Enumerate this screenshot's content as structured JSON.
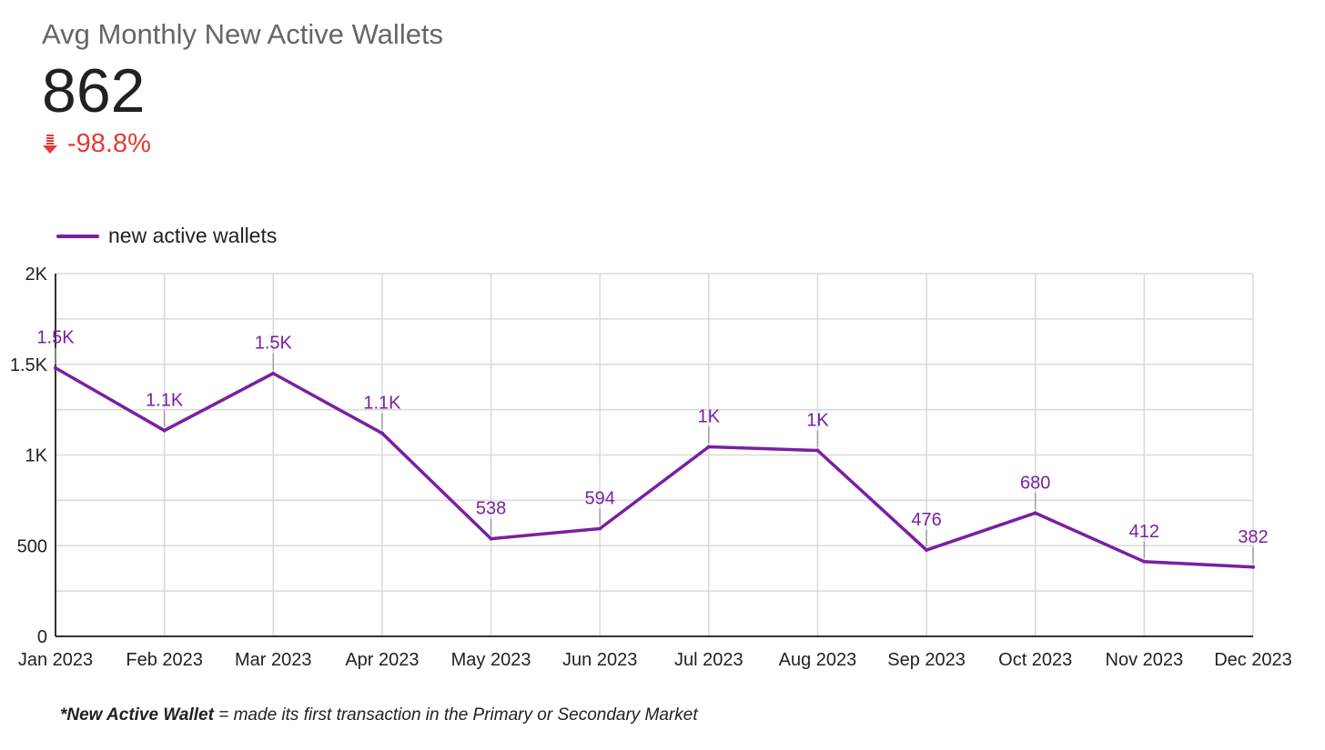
{
  "kpi": {
    "title": "Avg Monthly New Active Wallets",
    "value": "862",
    "delta": "-98.8%",
    "delta_direction": "down",
    "delta_icon": "arrow-down-icon",
    "delta_color": "#e53935"
  },
  "colors": {
    "series": "#7b1fa2",
    "grid": "#d9d9d9",
    "axis": "#333333"
  },
  "footnote": {
    "prefix": "*New Active Wallet",
    "rest": " = made its first transaction in the Primary or Secondary Market"
  },
  "chart_data": {
    "type": "line",
    "title": "",
    "xlabel": "",
    "ylabel": "",
    "ylim": [
      0,
      2000
    ],
    "y_ticks": [
      {
        "value": 0,
        "label": "0"
      },
      {
        "value": 500,
        "label": "500"
      },
      {
        "value": 1000,
        "label": "1K"
      },
      {
        "value": 1500,
        "label": "1.5K"
      },
      {
        "value": 2000,
        "label": "2K"
      }
    ],
    "grid": true,
    "legend_position": "top-left",
    "categories": [
      "Jan 2023",
      "Feb 2023",
      "Mar 2023",
      "Apr 2023",
      "May 2023",
      "Jun 2023",
      "Jul 2023",
      "Aug 2023",
      "Sep 2023",
      "Oct 2023",
      "Nov 2023",
      "Dec 2023"
    ],
    "series": [
      {
        "name": "new active wallets",
        "color": "#7b1fa2",
        "values": [
          1480,
          1135,
          1450,
          1120,
          538,
          594,
          1045,
          1025,
          476,
          680,
          412,
          382
        ],
        "labels": [
          "1.5K",
          "1.1K",
          "1.5K",
          "1.1K",
          "538",
          "594",
          "1K",
          "1K",
          "476",
          "680",
          "412",
          "382"
        ]
      }
    ]
  }
}
